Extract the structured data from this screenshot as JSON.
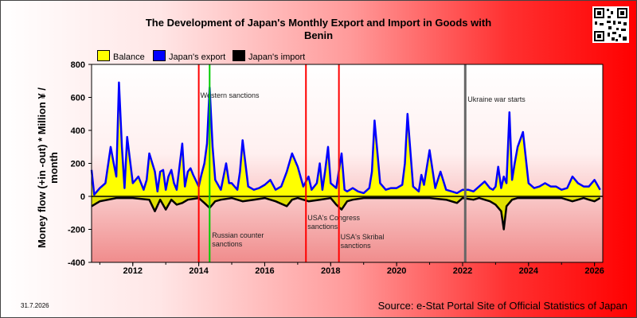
{
  "chart_data": {
    "type": "line",
    "title": "The Development of Japan's Monthly Export and Import in Goods with Benin",
    "ylabel": "Money flow (+in -out) * Million ¥ / month",
    "xlim": [
      2010.75,
      2026.25
    ],
    "ylim": [
      -400,
      800
    ],
    "y_ticks": [
      -400,
      -200,
      0,
      200,
      400,
      600,
      800
    ],
    "x_ticks": [
      2012,
      2014,
      2016,
      2018,
      2020,
      2022,
      2024,
      2026
    ],
    "grid": false,
    "legend_position": "top",
    "colors": {
      "balance": "#ffff00",
      "export": "#0000ff",
      "import": "#000000",
      "sanction_line": "#ff0000",
      "green_line": "#00cc00",
      "war_line": "#666666"
    },
    "series": [
      {
        "name": "Balance",
        "kind": "area"
      },
      {
        "name": "Japan's export",
        "x": [
          2010.75,
          2010.83,
          2011.0,
          2011.17,
          2011.33,
          2011.42,
          2011.5,
          2011.58,
          2011.67,
          2011.75,
          2011.83,
          2012.0,
          2012.17,
          2012.33,
          2012.42,
          2012.5,
          2012.67,
          2012.75,
          2012.83,
          2012.92,
          2013.0,
          2013.08,
          2013.17,
          2013.25,
          2013.33,
          2013.5,
          2013.58,
          2013.67,
          2013.75,
          2013.83,
          2014.0,
          2014.08,
          2014.17,
          2014.25,
          2014.33,
          2014.42,
          2014.5,
          2014.67,
          2014.83,
          2014.92,
          2015.0,
          2015.17,
          2015.25,
          2015.33,
          2015.5,
          2015.67,
          2015.83,
          2016.0,
          2016.17,
          2016.33,
          2016.5,
          2016.67,
          2016.83,
          2017.0,
          2017.17,
          2017.33,
          2017.42,
          2017.5,
          2017.58,
          2017.67,
          2017.75,
          2017.83,
          2017.92,
          2018.0,
          2018.17,
          2018.33,
          2018.42,
          2018.5,
          2018.67,
          2018.83,
          2019.0,
          2019.17,
          2019.25,
          2019.33,
          2019.5,
          2019.67,
          2019.83,
          2020.0,
          2020.17,
          2020.25,
          2020.33,
          2020.5,
          2020.67,
          2020.75,
          2020.83,
          2021.0,
          2021.17,
          2021.33,
          2021.5,
          2021.67,
          2021.83,
          2022.0,
          2022.17,
          2022.33,
          2022.5,
          2022.67,
          2022.83,
          2022.92,
          2023.0,
          2023.08,
          2023.17,
          2023.25,
          2023.33,
          2023.42,
          2023.5,
          2023.58,
          2023.67,
          2023.83,
          2024.0,
          2024.17,
          2024.33,
          2024.5,
          2024.67,
          2024.83,
          2025.0,
          2025.17,
          2025.33,
          2025.5,
          2025.67,
          2025.83,
          2026.0,
          2026.17
        ],
        "y": [
          160,
          10,
          50,
          80,
          300,
          200,
          120,
          690,
          300,
          50,
          360,
          80,
          120,
          40,
          100,
          260,
          150,
          30,
          150,
          160,
          40,
          120,
          160,
          80,
          40,
          320,
          60,
          150,
          170,
          130,
          60,
          130,
          200,
          320,
          660,
          300,
          100,
          40,
          200,
          80,
          80,
          40,
          150,
          340,
          60,
          40,
          50,
          70,
          100,
          40,
          60,
          150,
          260,
          180,
          60,
          120,
          40,
          60,
          80,
          200,
          40,
          150,
          300,
          80,
          50,
          260,
          40,
          30,
          50,
          30,
          20,
          50,
          150,
          460,
          80,
          40,
          50,
          50,
          70,
          200,
          500,
          60,
          30,
          130,
          70,
          280,
          50,
          150,
          40,
          30,
          20,
          40,
          40,
          30,
          60,
          90,
          50,
          40,
          60,
          180,
          50,
          120,
          80,
          510,
          100,
          200,
          300,
          390,
          80,
          50,
          60,
          80,
          60,
          60,
          40,
          50,
          120,
          80,
          60,
          60,
          100,
          40
        ]
      },
      {
        "name": "Japan's import",
        "x": [
          2010.75,
          2011.0,
          2011.5,
          2012.0,
          2012.5,
          2012.67,
          2012.83,
          2013.0,
          2013.17,
          2013.33,
          2013.5,
          2013.67,
          2014.0,
          2014.17,
          2014.33,
          2014.5,
          2014.67,
          2015.0,
          2015.33,
          2015.67,
          2016.0,
          2016.33,
          2016.67,
          2016.83,
          2017.0,
          2017.33,
          2017.67,
          2018.0,
          2018.17,
          2018.33,
          2018.5,
          2018.67,
          2019.0,
          2019.5,
          2020.0,
          2020.5,
          2021.0,
          2021.5,
          2021.83,
          2022.0,
          2022.33,
          2022.5,
          2022.67,
          2022.83,
          2023.0,
          2023.17,
          2023.25,
          2023.33,
          2023.5,
          2023.67,
          2023.83,
          2024.0,
          2024.5,
          2025.0,
          2025.33,
          2025.5,
          2025.67,
          2025.83,
          2026.0,
          2026.17
        ],
        "y": [
          -60,
          -30,
          -10,
          -10,
          -20,
          -90,
          -20,
          -80,
          -20,
          -50,
          -40,
          -20,
          -10,
          -40,
          -70,
          -30,
          -20,
          -10,
          -30,
          -20,
          -10,
          -30,
          -60,
          -20,
          -10,
          -30,
          -20,
          -10,
          -50,
          -80,
          -30,
          -20,
          -10,
          -10,
          -10,
          -10,
          -10,
          -20,
          -40,
          -10,
          -20,
          -10,
          -20,
          -30,
          -50,
          -90,
          -200,
          -60,
          -20,
          -10,
          -10,
          -10,
          -10,
          -10,
          -30,
          -20,
          -10,
          -20,
          -30,
          -10
        ]
      }
    ],
    "annotations": [
      {
        "x": 2014.0,
        "label": "Western sanctions",
        "color": "#ff0000"
      },
      {
        "x": 2014.33,
        "label": "Russian counter sanctions",
        "color": "#00cc00"
      },
      {
        "x": 2017.25,
        "label": "USA's Congress sanctions",
        "color": "#ff0000"
      },
      {
        "x": 2018.25,
        "label": "USA's Skribal sanctions",
        "color": "#ff0000"
      },
      {
        "x": 2022.08,
        "label": "Ukraine war starts",
        "color": "#666666"
      }
    ]
  },
  "title_line1": "The Development of Japan's Monthly Export and Import in Goods with",
  "title_line2": "Benin",
  "legend": {
    "balance": "Balance",
    "export": "Japan's export",
    "import": "Japan's import"
  },
  "date": "31.7.2026",
  "source": "Source: e-Stat Portal Site of Official Statistics of Japan"
}
